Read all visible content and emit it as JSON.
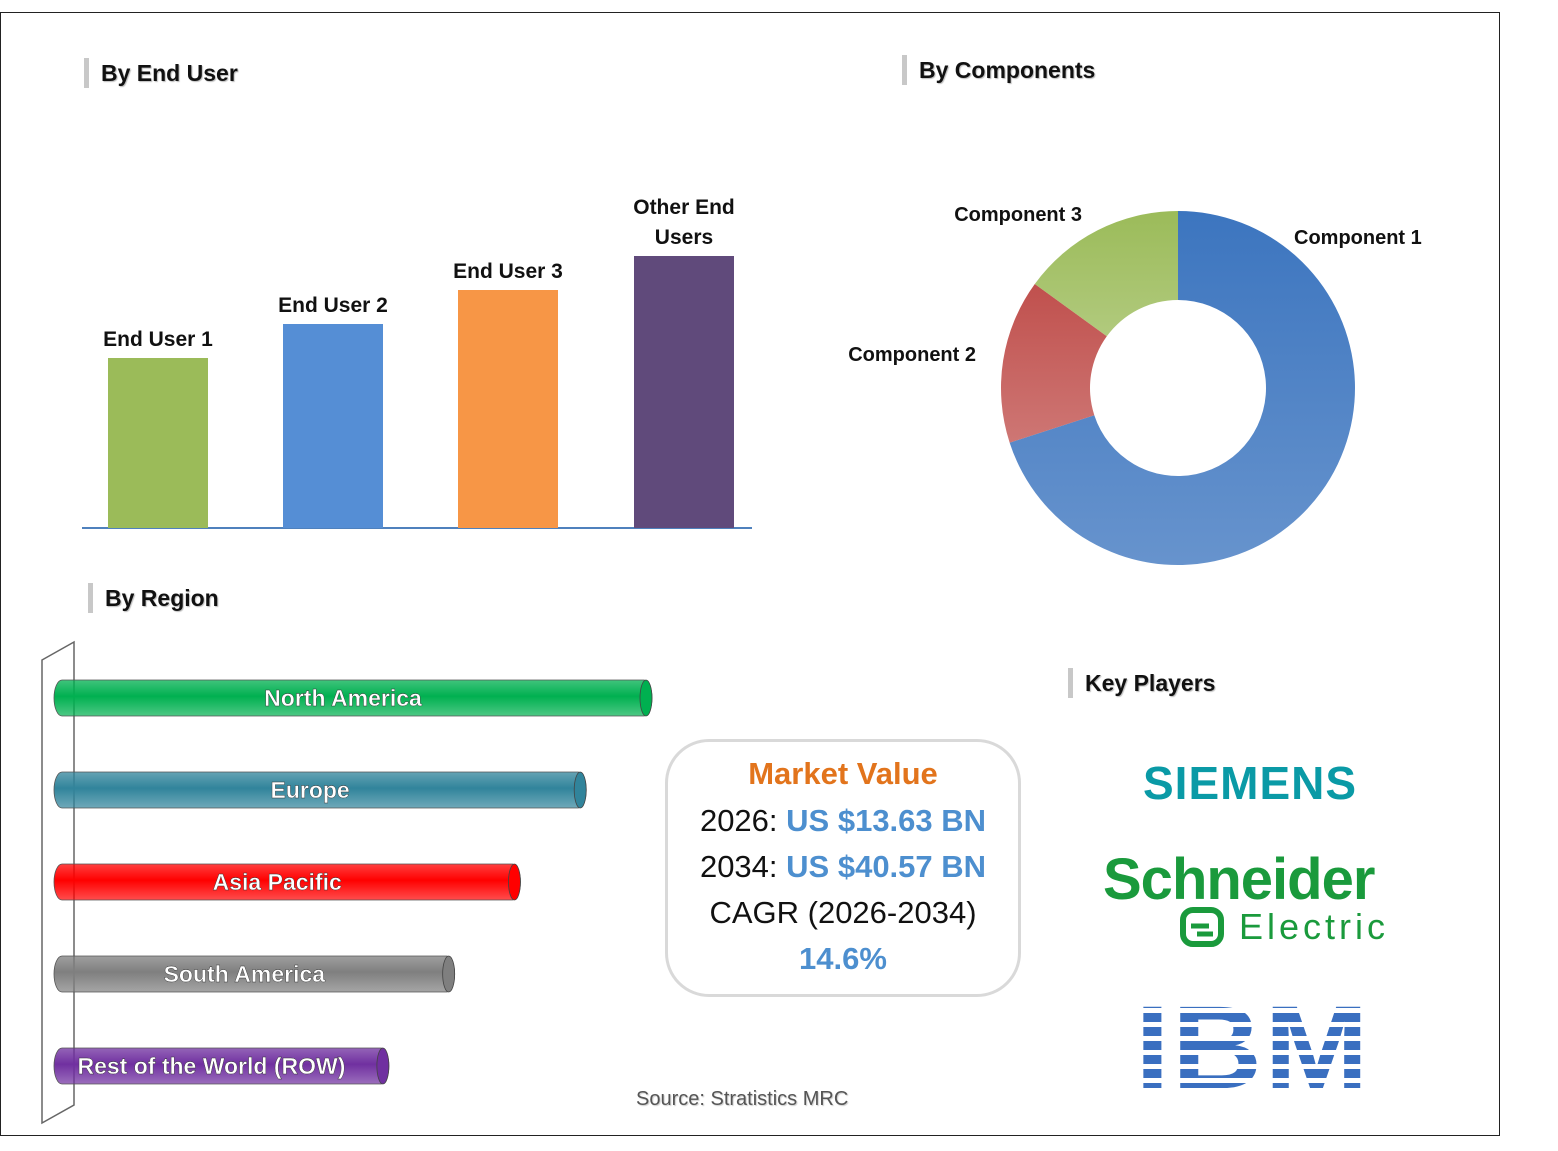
{
  "sections": {
    "end_user": "By End User",
    "components": "By Components",
    "region": "By Region",
    "key_players": "Key Players"
  },
  "chart_data": [
    {
      "type": "bar",
      "title": "By End User",
      "categories": [
        "End User 1",
        "End User 2",
        "End User 3",
        "Other End Users"
      ],
      "label_lines": [
        [
          "End User 1"
        ],
        [
          "End User 2"
        ],
        [
          "End User 3"
        ],
        [
          "Other End",
          "Users"
        ]
      ],
      "values": [
        2.5,
        3.0,
        3.5,
        4.0
      ],
      "colors": [
        "#9bbb59",
        "#558ed5",
        "#f79646",
        "#604a7b"
      ]
    },
    {
      "type": "pie",
      "title": "By Components",
      "categories": [
        "Component 1",
        "Component 2",
        "Component 3"
      ],
      "values": [
        70,
        15,
        15
      ],
      "colors": [
        "#3c75bf",
        "#c0504d",
        "#9bbb59"
      ]
    },
    {
      "type": "bar",
      "title": "By Region",
      "categories": [
        "North America",
        "Europe",
        "Asia Pacific",
        "South America",
        "Rest of the World (ROW)"
      ],
      "values": [
        100,
        89,
        78,
        67,
        56
      ],
      "colors": [
        "#00b050",
        "#31849b",
        "#ff0000",
        "#7f7f7f",
        "#7030a0"
      ]
    }
  ],
  "market": {
    "title": "Market Value",
    "y1_label": "2026: ",
    "y1_value": "US $13.63 BN",
    "y2_label": "2034: ",
    "y2_value": "US $40.57 BN",
    "cagr_label": "CAGR (2026-2034)",
    "cagr_value": "14.6%"
  },
  "players": {
    "siemens": "SIEMENS",
    "schneider_top": "Schneider",
    "schneider_bottom": "Electric",
    "ibm": "IBM"
  },
  "source": "Source: Stratistics MRC"
}
